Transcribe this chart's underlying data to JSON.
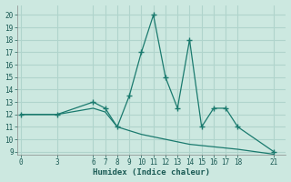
{
  "line1_x": [
    0,
    3,
    6,
    7,
    8,
    9,
    10,
    11,
    12,
    13,
    14,
    15,
    16,
    17,
    18,
    21
  ],
  "line1_y": [
    12,
    12,
    13,
    12.5,
    11,
    13.5,
    17,
    20,
    15,
    12.5,
    18,
    11,
    12.5,
    12.5,
    11,
    9
  ],
  "line2_x": [
    0,
    3,
    6,
    7,
    8,
    9,
    10,
    11,
    12,
    13,
    14,
    15,
    16,
    17,
    18,
    21
  ],
  "line2_y": [
    12,
    12,
    12.5,
    12.2,
    11.0,
    10.7,
    10.4,
    10.2,
    10.0,
    9.8,
    9.6,
    9.5,
    9.4,
    9.3,
    9.2,
    8.8
  ],
  "line_color": "#1a7a6e",
  "bg_color": "#cce8e0",
  "grid_color": "#b0d4cc",
  "xlabel": "Humidex (Indice chaleur)",
  "xticks": [
    0,
    3,
    6,
    7,
    8,
    9,
    10,
    11,
    12,
    13,
    14,
    15,
    16,
    17,
    18,
    21
  ],
  "yticks": [
    9,
    10,
    11,
    12,
    13,
    14,
    15,
    16,
    17,
    18,
    19,
    20
  ],
  "ylim": [
    8.8,
    20.8
  ],
  "xlim": [
    -0.3,
    22.0
  ]
}
